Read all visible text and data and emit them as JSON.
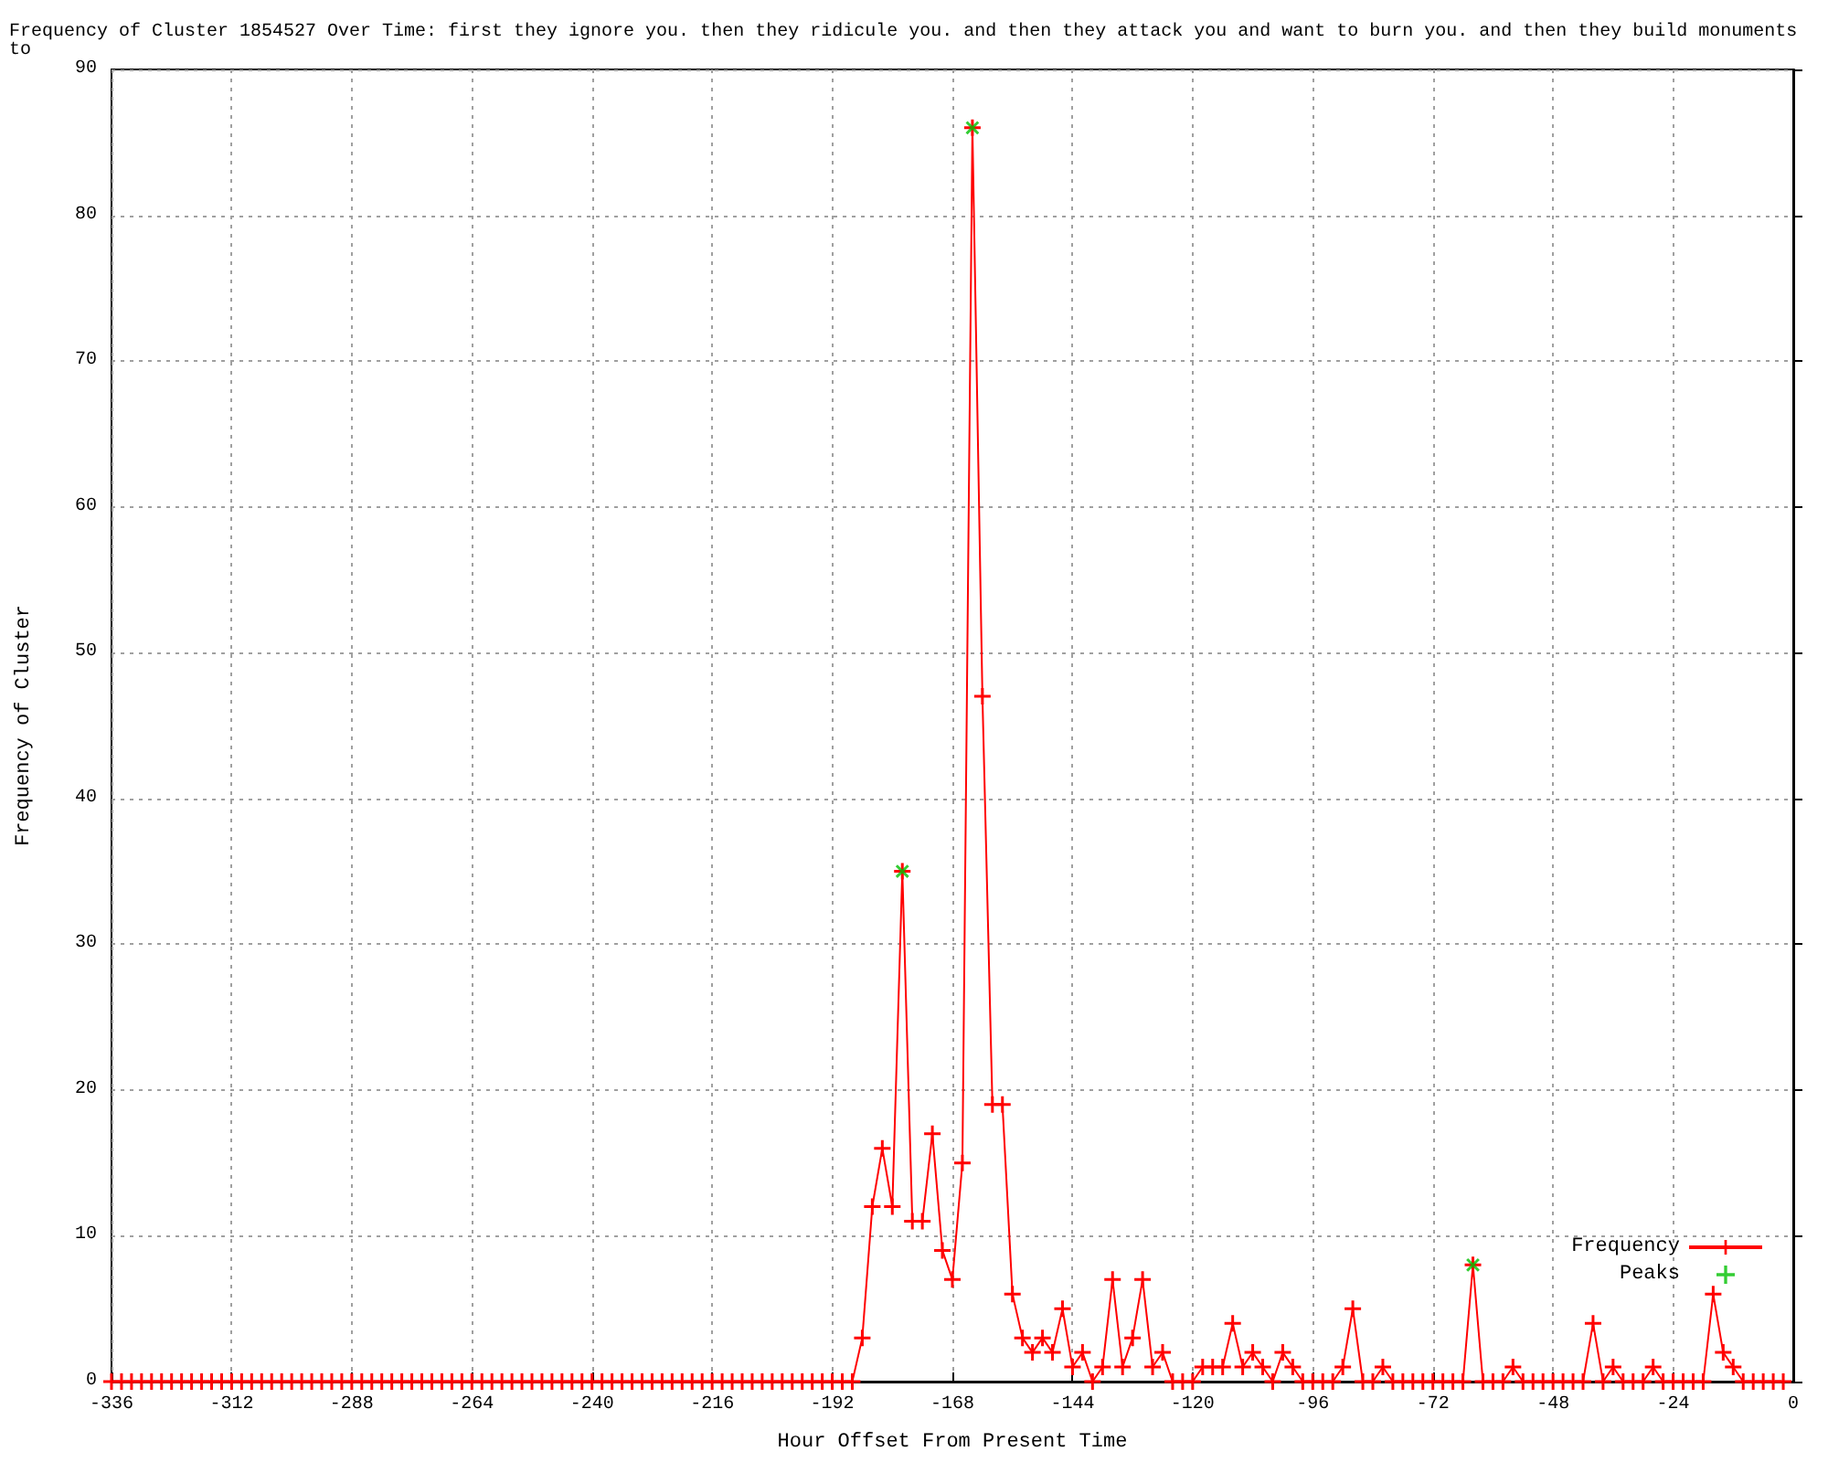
{
  "chart_data": {
    "type": "line",
    "title": "Frequency of Cluster 1854527 Over Time: first they ignore you. then they ridicule you. and then they attack you and want to burn you. and then they build monuments to",
    "xlabel": "Hour Offset From Present Time",
    "ylabel": "Frequency of Cluster",
    "xlim": [
      -336,
      0
    ],
    "xticks": [
      -336,
      -312,
      -288,
      -264,
      -240,
      -216,
      -192,
      -168,
      -144,
      -120,
      -96,
      -72,
      -48,
      -24,
      0
    ],
    "ylim": [
      0,
      90
    ],
    "yticks": [
      0,
      10,
      20,
      30,
      40,
      50,
      60,
      70,
      80,
      90
    ],
    "grid": true,
    "legend": "bottom right",
    "series": [
      {
        "name": "Frequency",
        "color": "#ff0000",
        "marker": "cross",
        "x": [
          -336,
          -334,
          -332,
          -330,
          -328,
          -326,
          -324,
          -322,
          -320,
          -318,
          -316,
          -314,
          -312,
          -310,
          -308,
          -306,
          -304,
          -302,
          -300,
          -298,
          -296,
          -294,
          -292,
          -290,
          -288,
          -286,
          -284,
          -282,
          -280,
          -278,
          -276,
          -274,
          -272,
          -270,
          -268,
          -266,
          -264,
          -262,
          -260,
          -258,
          -256,
          -254,
          -252,
          -250,
          -248,
          -246,
          -244,
          -242,
          -240,
          -238,
          -236,
          -234,
          -232,
          -230,
          -228,
          -226,
          -224,
          -222,
          -220,
          -218,
          -216,
          -214,
          -212,
          -210,
          -208,
          -206,
          -204,
          -202,
          -200,
          -198,
          -196,
          -194,
          -192,
          -190,
          -188,
          -186,
          -184,
          -182,
          -180,
          -178,
          -176,
          -174,
          -172,
          -170,
          -168,
          -166,
          -164,
          -162,
          -160,
          -158,
          -156,
          -154,
          -152,
          -150,
          -148,
          -146,
          -144,
          -142,
          -140,
          -138,
          -136,
          -134,
          -132,
          -130,
          -128,
          -126,
          -124,
          -122,
          -120,
          -118,
          -116,
          -114,
          -112,
          -110,
          -108,
          -106,
          -104,
          -102,
          -100,
          -98,
          -96,
          -94,
          -92,
          -90,
          -88,
          -86,
          -84,
          -82,
          -80,
          -78,
          -76,
          -74,
          -72,
          -70,
          -68,
          -66,
          -64,
          -62,
          -60,
          -58,
          -56,
          -54,
          -52,
          -50,
          -48,
          -46,
          -44,
          -42,
          -40,
          -38,
          -36,
          -34,
          -32,
          -30,
          -28,
          -26,
          -24,
          -22,
          -20,
          -18,
          -16,
          -14,
          -12,
          -10,
          -8,
          -6,
          -4,
          -2
        ],
        "values": [
          0,
          0,
          0,
          0,
          0,
          0,
          0,
          0,
          0,
          0,
          0,
          0,
          0,
          0,
          0,
          0,
          0,
          0,
          0,
          0,
          0,
          0,
          0,
          0,
          0,
          0,
          0,
          0,
          0,
          0,
          0,
          0,
          0,
          0,
          0,
          0,
          0,
          0,
          0,
          0,
          0,
          0,
          0,
          0,
          0,
          0,
          0,
          0,
          0,
          0,
          0,
          0,
          0,
          0,
          0,
          0,
          0,
          0,
          0,
          0,
          0,
          0,
          0,
          0,
          0,
          0,
          0,
          0,
          0,
          0,
          0,
          0,
          0,
          0,
          0,
          3,
          12,
          16,
          12,
          35,
          11,
          11,
          17,
          9,
          7,
          15,
          86,
          47,
          19,
          19,
          6,
          3,
          2,
          3,
          2,
          5,
          1,
          2,
          0,
          1,
          7,
          1,
          3,
          7,
          1,
          2,
          0,
          0,
          0,
          1,
          1,
          1,
          4,
          1,
          2,
          1,
          0,
          2,
          1,
          0,
          0,
          0,
          0,
          1,
          5,
          0,
          0,
          1,
          0,
          0,
          0,
          0,
          0,
          0,
          0,
          0,
          8,
          0,
          0,
          0,
          1,
          0,
          0,
          0,
          0,
          0,
          0,
          0,
          4,
          0,
          1,
          0,
          0,
          0,
          1,
          0,
          0,
          0,
          0,
          0,
          6,
          2,
          1,
          0,
          0,
          0,
          0,
          0
        ]
      },
      {
        "name": "Peaks",
        "type": "scatter",
        "color": "#00c000",
        "marker": "cross",
        "x": [
          -178,
          -164,
          -64
        ],
        "values": [
          35,
          86,
          8
        ]
      }
    ]
  }
}
